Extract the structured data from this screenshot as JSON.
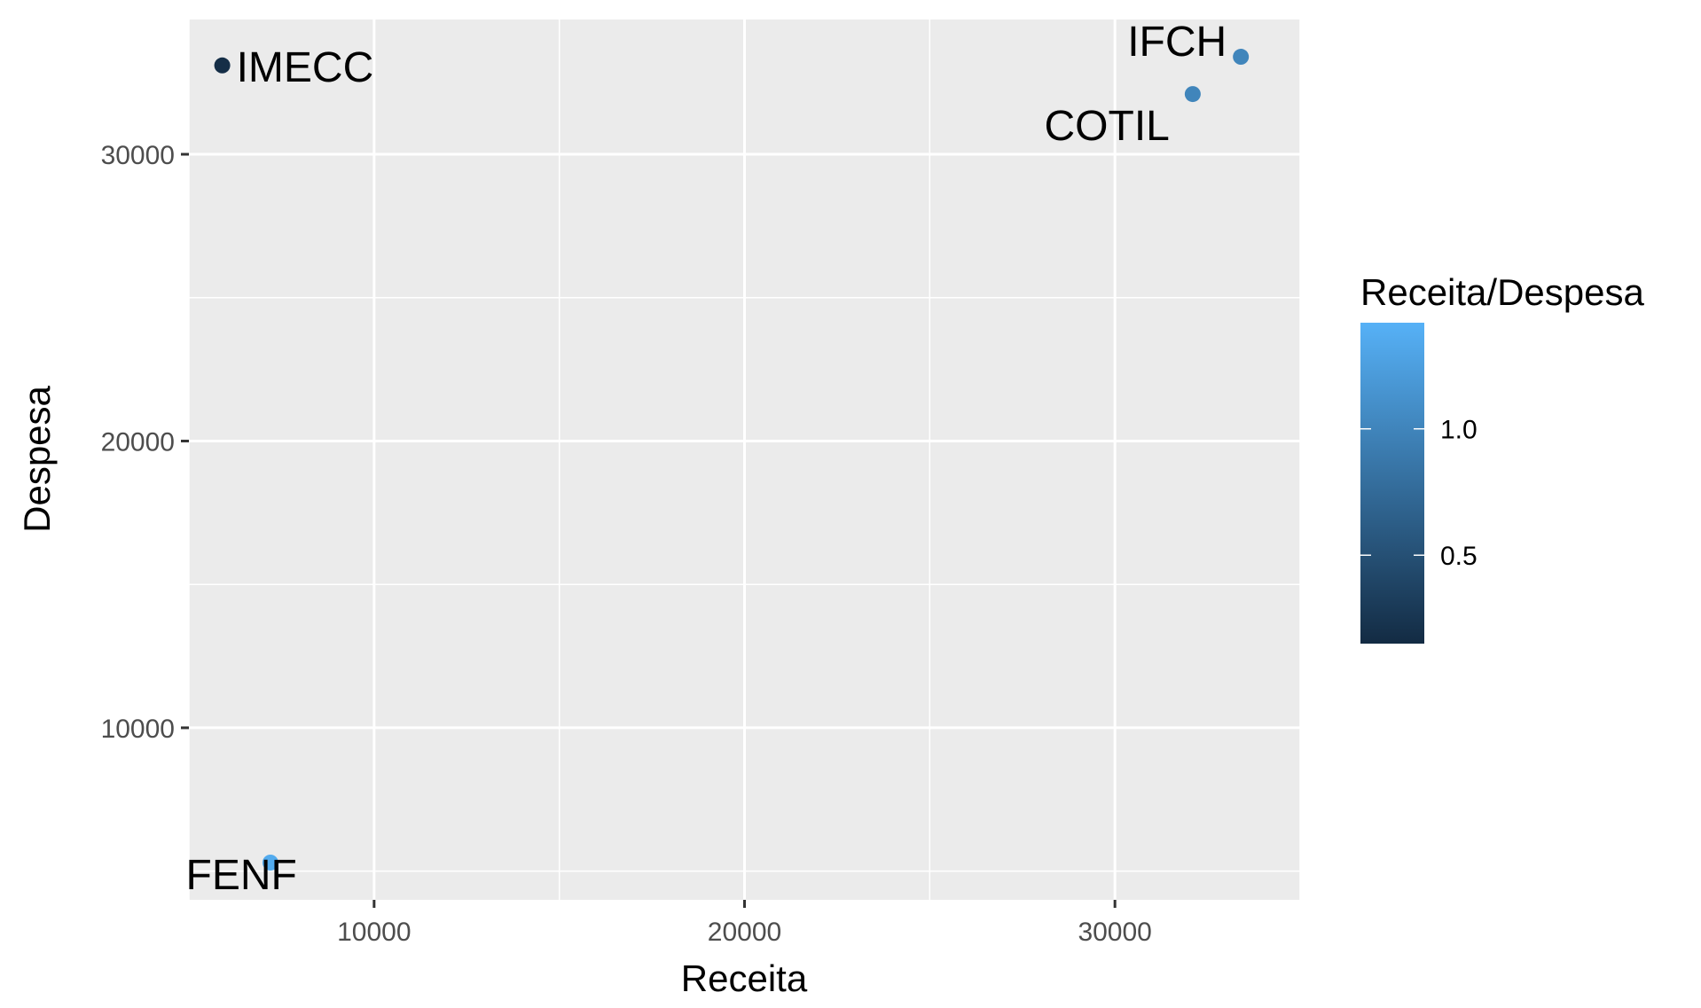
{
  "chart_data": {
    "type": "scatter",
    "xlabel": "Receita",
    "ylabel": "Despesa",
    "xlim": [
      5000,
      35000
    ],
    "ylim": [
      4000,
      34700
    ],
    "x_ticks": [
      10000,
      20000,
      30000
    ],
    "y_ticks": [
      10000,
      20000,
      30000
    ],
    "grid": true,
    "points": [
      {
        "label": "IMECC",
        "x": 5900,
        "y": 33100,
        "ratio": 0.18
      },
      {
        "label": "IFCH",
        "x": 33400,
        "y": 33400,
        "ratio": 1.0
      },
      {
        "label": "COTIL",
        "x": 32100,
        "y": 32100,
        "ratio": 1.0
      },
      {
        "label": "FENF",
        "x": 7200,
        "y": 5300,
        "ratio": 1.36
      }
    ],
    "legend": {
      "title": "Receita/Despesa",
      "type": "colorbar",
      "range": [
        0.15,
        1.42
      ],
      "ticks": [
        0.5,
        1.0
      ],
      "tick_labels": [
        "0.5",
        "1.0"
      ],
      "placement": "right",
      "color_low": "#132b43",
      "color_high": "#56b1f7"
    }
  }
}
